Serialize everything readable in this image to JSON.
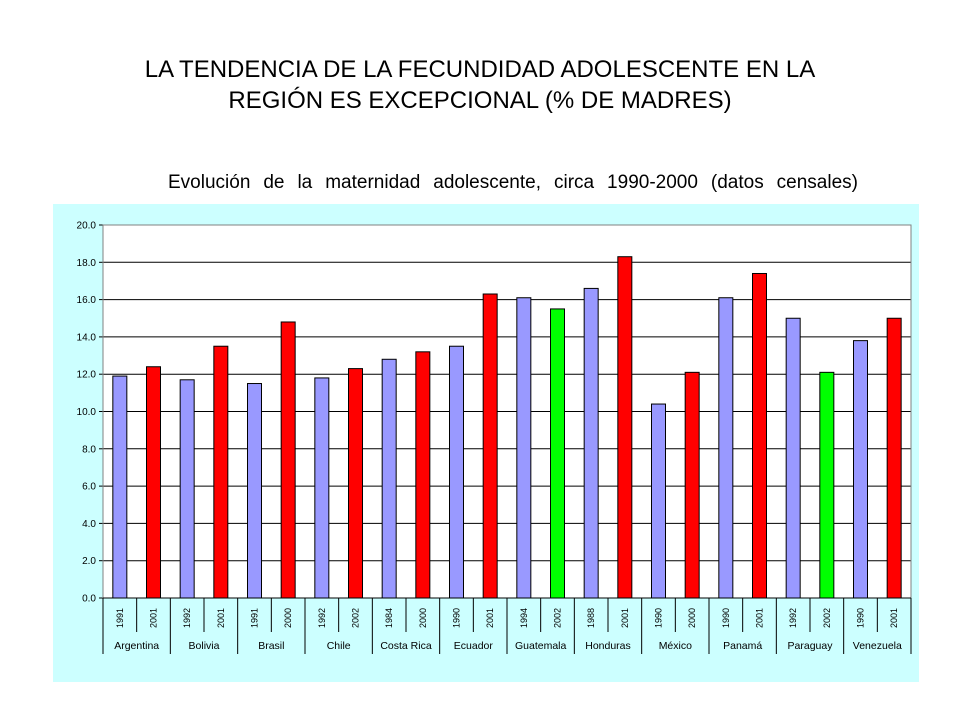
{
  "slide": {
    "title_line1": "LA TENDENCIA DE LA FECUNDIDAD ADOLESCENTE EN LA",
    "title_line2": "REGIÓN ES EXCEPCIONAL (% DE MADRES)"
  },
  "chart_data": {
    "type": "bar",
    "title": "Evolución de la maternidad adolescente, circa 1990-2000 (datos censales)",
    "xlabel": "",
    "ylabel": "",
    "ylim": [
      0,
      20
    ],
    "yticks": [
      "0.0",
      "2.0",
      "4.0",
      "6.0",
      "8.0",
      "10.0",
      "12.0",
      "14.0",
      "16.0",
      "18.0",
      "20.0"
    ],
    "grid": true,
    "legend": "none",
    "colors": {
      "earlier": "#9999ff",
      "later_increase": "#ff0000",
      "later_decrease": "#00ff00"
    },
    "groups": [
      {
        "country": "Argentina",
        "bars": [
          {
            "year": "1991",
            "value": 11.9,
            "color": "earlier"
          },
          {
            "year": "2001",
            "value": 12.4,
            "color": "later_increase"
          }
        ]
      },
      {
        "country": "Bolivia",
        "bars": [
          {
            "year": "1992",
            "value": 11.7,
            "color": "earlier"
          },
          {
            "year": "2001",
            "value": 13.5,
            "color": "later_increase"
          }
        ]
      },
      {
        "country": "Brasil",
        "bars": [
          {
            "year": "1991",
            "value": 11.5,
            "color": "earlier"
          },
          {
            "year": "2000",
            "value": 14.8,
            "color": "later_increase"
          }
        ]
      },
      {
        "country": "Chile",
        "bars": [
          {
            "year": "1992",
            "value": 11.8,
            "color": "earlier"
          },
          {
            "year": "2002",
            "value": 12.3,
            "color": "later_increase"
          }
        ]
      },
      {
        "country": "Costa Rica",
        "bars": [
          {
            "year": "1984",
            "value": 12.8,
            "color": "earlier"
          },
          {
            "year": "2000",
            "value": 13.2,
            "color": "later_increase"
          }
        ]
      },
      {
        "country": "Ecuador",
        "bars": [
          {
            "year": "1990",
            "value": 13.5,
            "color": "earlier"
          },
          {
            "year": "2001",
            "value": 16.3,
            "color": "later_increase"
          }
        ]
      },
      {
        "country": "Guatemala",
        "bars": [
          {
            "year": "1994",
            "value": 16.1,
            "color": "earlier"
          },
          {
            "year": "2002",
            "value": 15.5,
            "color": "later_decrease"
          }
        ]
      },
      {
        "country": "Honduras",
        "bars": [
          {
            "year": "1988",
            "value": 16.6,
            "color": "earlier"
          },
          {
            "year": "2001",
            "value": 18.3,
            "color": "later_increase"
          }
        ]
      },
      {
        "country": "México",
        "bars": [
          {
            "year": "1990",
            "value": 10.4,
            "color": "earlier"
          },
          {
            "year": "2000",
            "value": 12.1,
            "color": "later_increase"
          }
        ]
      },
      {
        "country": "Panamá",
        "bars": [
          {
            "year": "1990",
            "value": 16.1,
            "color": "earlier"
          },
          {
            "year": "2001",
            "value": 17.4,
            "color": "later_increase"
          }
        ]
      },
      {
        "country": "Paraguay",
        "bars": [
          {
            "year": "1992",
            "value": 15.0,
            "color": "earlier"
          },
          {
            "year": "2002",
            "value": 12.1,
            "color": "later_decrease"
          }
        ]
      },
      {
        "country": "Venezuela",
        "bars": [
          {
            "year": "1990",
            "value": 13.8,
            "color": "earlier"
          },
          {
            "year": "2001",
            "value": 15.0,
            "color": "later_increase"
          }
        ]
      }
    ]
  }
}
